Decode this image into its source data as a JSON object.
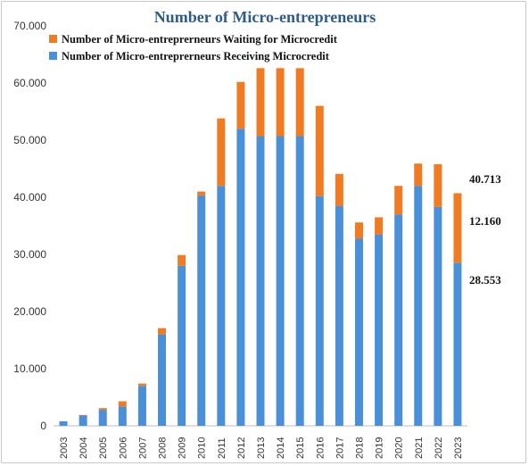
{
  "chart_data": {
    "type": "bar",
    "stacked": true,
    "title": "Number of Micro-entrepreneurs",
    "xlabel": "",
    "ylabel": "",
    "ylim": [
      0,
      70000
    ],
    "yticks": [
      0,
      10000,
      20000,
      30000,
      40000,
      50000,
      60000,
      70000
    ],
    "ytick_labels": [
      "0",
      "10.000",
      "20.000",
      "30.000",
      "40.000",
      "50.000",
      "60.000",
      "70.000"
    ],
    "categories": [
      "2003",
      "2004",
      "2005",
      "2006",
      "2007",
      "2008",
      "2009",
      "2010",
      "2011",
      "2012",
      "2013",
      "2014",
      "2015",
      "2016",
      "2017",
      "2018",
      "2019",
      "2020",
      "2021",
      "2022",
      "2023"
    ],
    "series": [
      {
        "name": "Number of Micro-entreprerneurs Receiving Microcredit",
        "color": "#4a90d9",
        "values": [
          800,
          1800,
          2800,
          3400,
          7000,
          16000,
          28000,
          40300,
          42000,
          52000,
          50700,
          50700,
          50700,
          40200,
          38500,
          32800,
          33500,
          37000,
          42000,
          38300,
          28553
        ]
      },
      {
        "name": "Number of Micro-entreprerneurs Waiting for Microcredit",
        "color": "#f07b22",
        "values": [
          0,
          100,
          300,
          900,
          400,
          1100,
          1900,
          700,
          11800,
          8200,
          11900,
          11900,
          11900,
          15800,
          5600,
          2800,
          3000,
          5000,
          3900,
          7500,
          12160
        ]
      }
    ],
    "legend": {
      "position": "top-left",
      "order": [
        "Number of Micro-entreprerneurs Waiting for Microcredit",
        "Number of Micro-entreprerneurs Receiving Microcredit"
      ]
    },
    "grid": false,
    "annotations": [
      {
        "text": "40.713",
        "value": 40713
      },
      {
        "text": "12.160",
        "value": 12160
      },
      {
        "text": "28.553",
        "value": 28553
      }
    ]
  }
}
